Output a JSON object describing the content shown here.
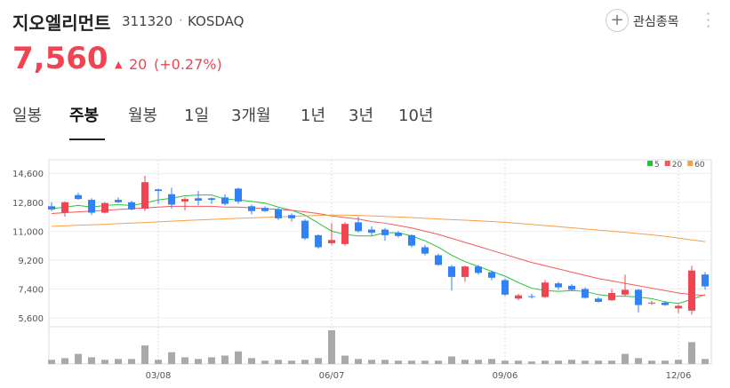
{
  "header": {
    "name": "지오엘리먼트",
    "code": "311320",
    "market": "KOSDAQ",
    "watch": "관심종목",
    "price": "7,560",
    "change": "20",
    "change_pct": "(+0.27%)"
  },
  "tabs": [
    "일봉",
    "주봉",
    "월봉",
    "1일",
    "3개월",
    "1년",
    "3년",
    "10년"
  ],
  "chart_data": {
    "type": "candlestick",
    "categories": [
      null,
      null,
      null,
      null,
      null,
      null,
      null,
      null,
      "03/08",
      null,
      null,
      null,
      null,
      null,
      null,
      null,
      null,
      null,
      null,
      null,
      null,
      "06/07",
      null,
      null,
      null,
      null,
      null,
      null,
      null,
      null,
      null,
      null,
      null,
      null,
      "09/06",
      null,
      null,
      null,
      null,
      null,
      null,
      null,
      null,
      null,
      null,
      null,
      null,
      "12/06",
      null,
      null
    ],
    "open": [
      12550,
      12150,
      13250,
      12950,
      12150,
      12950,
      12800,
      12400,
      13600,
      13300,
      12850,
      13050,
      13050,
      13100,
      13650,
      12550,
      12450,
      12350,
      12000,
      11650,
      10750,
      10250,
      10200,
      11550,
      11100,
      11100,
      10900,
      10750,
      10000,
      9500,
      8800,
      8150,
      8800,
      8450,
      7950,
      6800,
      6950,
      6900,
      7750,
      7600,
      7400,
      6800,
      6700,
      7050,
      7350,
      6500,
      6550,
      6200,
      6050,
      8300
    ],
    "high": [
      12800,
      12850,
      13400,
      13050,
      12800,
      13100,
      12900,
      14450,
      13650,
      13700,
      13100,
      13500,
      13100,
      13300,
      13700,
      12650,
      12550,
      12450,
      12100,
      11750,
      10800,
      11500,
      11550,
      11900,
      11300,
      11200,
      11000,
      10800,
      10150,
      9600,
      8900,
      8850,
      8900,
      8550,
      8050,
      7100,
      7100,
      7950,
      7850,
      7700,
      7500,
      6900,
      7400,
      8300,
      7400,
      6650,
      6650,
      6450,
      8850,
      8450
    ],
    "low": [
      12250,
      11900,
      12950,
      12000,
      12100,
      12750,
      12300,
      12250,
      12700,
      12400,
      12300,
      12600,
      12700,
      12600,
      12700,
      12050,
      12200,
      11700,
      11600,
      10450,
      9900,
      10150,
      10100,
      10900,
      10700,
      10400,
      10600,
      10000,
      9500,
      8850,
      7300,
      7850,
      8300,
      7950,
      6950,
      6700,
      6800,
      6850,
      7350,
      7300,
      6800,
      6550,
      6650,
      6950,
      5950,
      6400,
      6350,
      5900,
      5800,
      7350
    ],
    "close": [
      12350,
      12800,
      13000,
      12150,
      12750,
      12800,
      12350,
      14050,
      13500,
      12650,
      13000,
      12900,
      12950,
      12700,
      12850,
      12250,
      12250,
      11800,
      11800,
      10550,
      10000,
      10450,
      11450,
      11000,
      10900,
      10750,
      10700,
      10100,
      9600,
      8900,
      8150,
      8800,
      8400,
      8100,
      7050,
      7000,
      6900,
      7800,
      7500,
      7350,
      6850,
      6600,
      7150,
      7350,
      6400,
      6550,
      6400,
      6350,
      8550,
      7560
    ],
    "up_color": "#f04452",
    "down_color": "#3182f6",
    "series": [
      {
        "name": "5",
        "color": "#27c43a",
        "values": [
          12400,
          12500,
          12600,
          12500,
          12600,
          12650,
          12600,
          12750,
          12950,
          13050,
          13200,
          13250,
          13250,
          13000,
          12950,
          12850,
          12750,
          12500,
          12300,
          12000,
          11500,
          11000,
          10800,
          10700,
          10700,
          10900,
          10900,
          10700,
          10400,
          10000,
          9500,
          9100,
          8800,
          8500,
          8200,
          7800,
          7450,
          7300,
          7250,
          7300,
          7250,
          7050,
          6950,
          6950,
          6900,
          6800,
          6600,
          6500,
          6750,
          7050
        ]
      },
      {
        "name": "20",
        "color": "#f25a5a",
        "values": [
          12100,
          12150,
          12200,
          12250,
          12300,
          12350,
          12400,
          12450,
          12500,
          12550,
          12550,
          12550,
          12550,
          12500,
          12500,
          12450,
          12400,
          12350,
          12300,
          12200,
          12100,
          11950,
          11850,
          11750,
          11600,
          11500,
          11350,
          11200,
          11000,
          10800,
          10550,
          10300,
          10050,
          9800,
          9550,
          9300,
          9050,
          8850,
          8650,
          8450,
          8250,
          8050,
          7900,
          7750,
          7600,
          7450,
          7300,
          7150,
          7050,
          7000
        ]
      },
      {
        "name": "60",
        "color": "#f5a04a",
        "values": [
          11300,
          11330,
          11370,
          11400,
          11430,
          11470,
          11500,
          11540,
          11580,
          11620,
          11660,
          11700,
          11730,
          11760,
          11800,
          11830,
          11860,
          11890,
          11920,
          11950,
          11980,
          12000,
          12000,
          11980,
          11950,
          11920,
          11880,
          11850,
          11800,
          11760,
          11720,
          11680,
          11640,
          11600,
          11550,
          11480,
          11420,
          11350,
          11280,
          11210,
          11140,
          11070,
          11000,
          10930,
          10850,
          10770,
          10680,
          10570,
          10450,
          10350
        ]
      }
    ],
    "volume": [
      5,
      7,
      12,
      8,
      5,
      6,
      6,
      22,
      5,
      14,
      8,
      6,
      8,
      10,
      15,
      7,
      4,
      5,
      4,
      5,
      7,
      40,
      10,
      6,
      5,
      5,
      4,
      4,
      4,
      4,
      9,
      5,
      5,
      6,
      4,
      4,
      3,
      4,
      4,
      5,
      4,
      4,
      4,
      12,
      7,
      4,
      4,
      5,
      26,
      6
    ],
    "volume_color": "#a9a9a9",
    "ylim": [
      5270,
      15000
    ],
    "yticks": [
      {
        "value": 5600,
        "label": "5,600"
      },
      {
        "value": 7400,
        "label": "7,400"
      },
      {
        "value": 9200,
        "label": "9,200"
      },
      {
        "value": 11000,
        "label": "11,000"
      },
      {
        "value": 12800,
        "label": "12,800"
      },
      {
        "value": 14600,
        "label": "14,600"
      }
    ],
    "grid": true
  }
}
